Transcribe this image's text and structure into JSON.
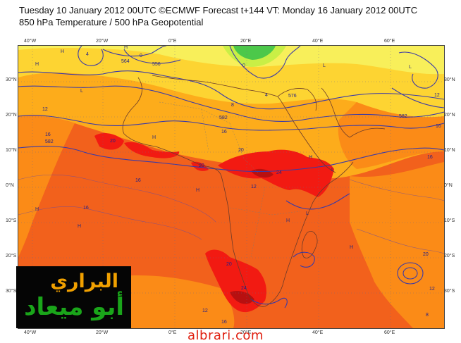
{
  "header": {
    "line1": "Tuesday 10 January 2012 00UTC ©ECMWF Forecast t+144 VT: Monday 16 January 2012 00UTC",
    "line2": "850 hPa Temperature / 500 hPa Geopotential"
  },
  "axes": {
    "top_lon": [
      "40°W",
      "20°W",
      "0°E",
      "20°E",
      "40°E",
      "60°E"
    ],
    "bottom_lon": [
      "40°W",
      "20°W",
      "0°E",
      "20°E",
      "40°E",
      "60°E"
    ],
    "left_lat": [
      "30°N",
      "20°N",
      "10°N",
      "0°N",
      "10°S",
      "20°S",
      "30°S"
    ],
    "right_lat": [
      "30°N",
      "20°N",
      "10°N",
      "0°N",
      "10°S",
      "20°S",
      "30°S"
    ]
  },
  "contour_labels": [
    "4",
    "0",
    "556",
    "564",
    "0",
    "4",
    "576",
    "8",
    "582",
    "12",
    "16",
    "582",
    "20",
    "20",
    "16",
    "16",
    "16",
    "24",
    "20",
    "12",
    "20",
    "24",
    "12",
    "12",
    "16",
    "582",
    "16",
    "20",
    "12",
    "16",
    "8"
  ],
  "pressure_labels": [
    "H",
    "L",
    "H",
    "H",
    "L",
    "H",
    "H",
    "H",
    "H",
    "L",
    "L",
    "H",
    "H",
    "H",
    "L"
  ],
  "colors": {
    "deep_orange": "#f2611c",
    "orange": "#fb8b17",
    "light_orange": "#fdac1b",
    "amber": "#fdd432",
    "yellow": "#f8ef5a",
    "red": "#f21a12",
    "dark_red": "#b81010",
    "lime": "#c9ef46",
    "green": "#4cc84a",
    "contour": "#3a3aa8"
  },
  "logo": {
    "line1": "البراري",
    "line2": "أبو ميعاد"
  },
  "watermark": "albrari.com"
}
